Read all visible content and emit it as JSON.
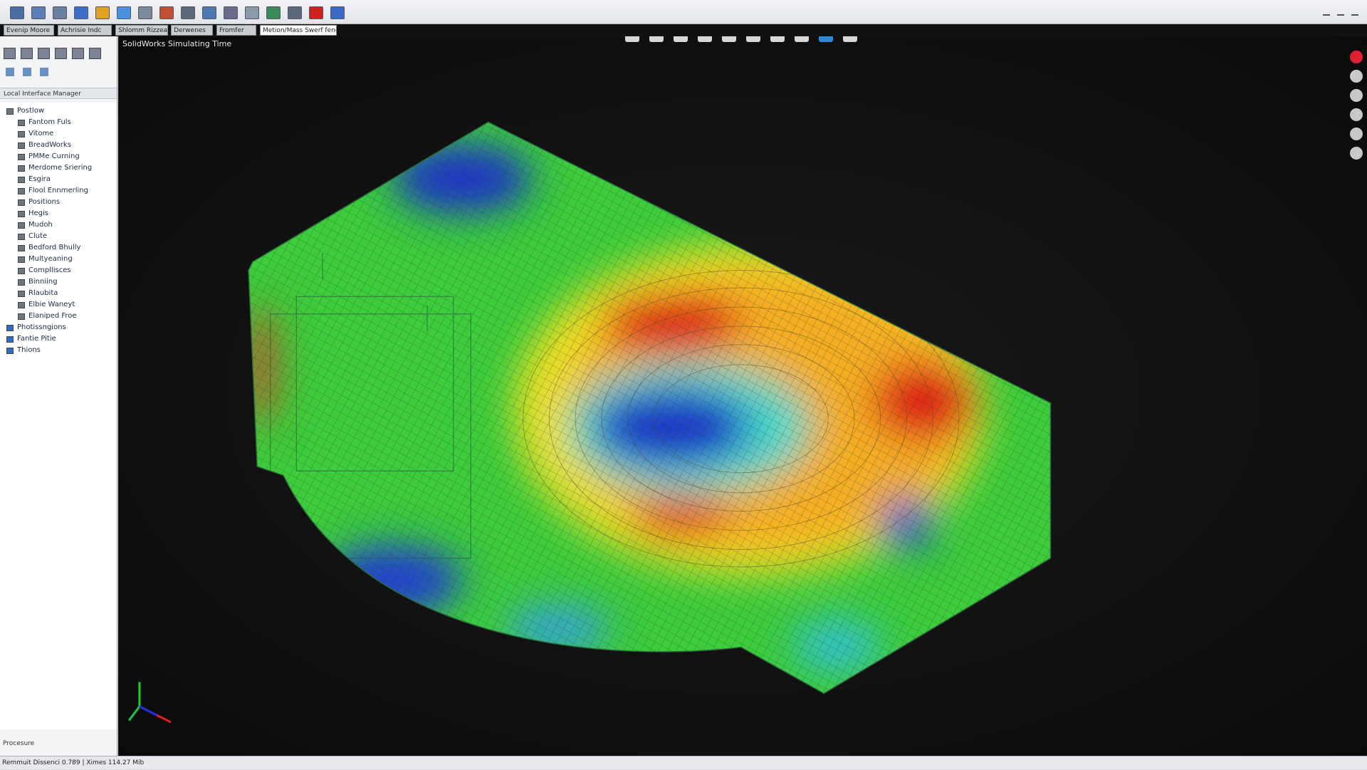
{
  "tabs": [
    "Evenip Moore",
    "Achrisie Indc",
    "Shlomm Rizzea",
    "Derwenes",
    "Fromfer",
    "Metion/Mass Swerf fenck"
  ],
  "panel": {
    "title": "Local Interface Manager",
    "tree": [
      "Postlow",
      "Fantom Fuls",
      "Vitome",
      "BreadWorks",
      "PMMe Curning",
      "Merdome Sriering",
      "Esgira",
      "Flool Ennmerling",
      "Positions",
      "Hegis",
      "Mudoh",
      "Clute",
      "Bedford Bhully",
      "Multyeaning",
      "Compllisces",
      "Binniing",
      "Rlaubita",
      "Elbie Waneyt",
      "Elaniped Froe",
      "Photissngions",
      "Fantie Pitie",
      "Thions"
    ],
    "footer": "Procesure"
  },
  "viewport": {
    "title": "SolidWorks Simulating Time"
  },
  "status": {
    "text": "Remmuit Dissenci 0.789 | Ximes 114.27 Mib"
  }
}
